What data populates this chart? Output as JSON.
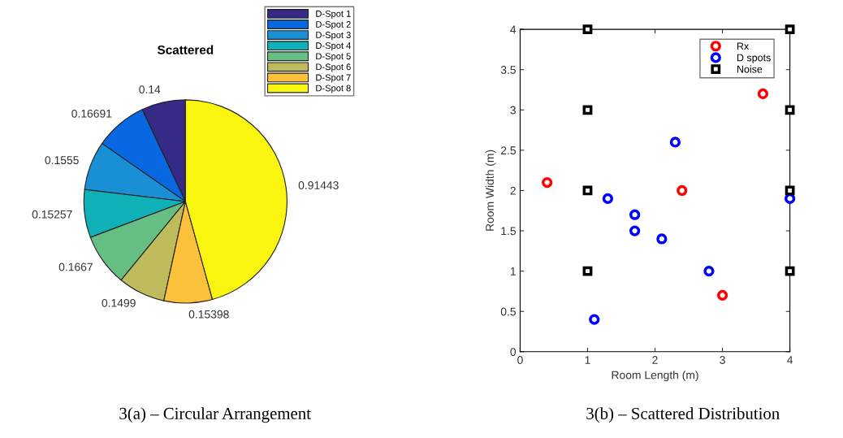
{
  "chart_data": [
    {
      "type": "pie",
      "title": "Scattered",
      "categories": [
        "D-Spot 1",
        "D-Spot 2",
        "D-Spot 3",
        "D-Spot 4",
        "D-Spot 5",
        "D-Spot 6",
        "D-Spot 7",
        "D-Spot 8"
      ],
      "values": [
        0.14,
        0.16691,
        0.1555,
        0.15257,
        0.1667,
        0.1499,
        0.15398,
        0.91443
      ],
      "colors": [
        "#352a87",
        "#0868e1",
        "#1a8fd6",
        "#0fb0b8",
        "#65bf83",
        "#bdbb5b",
        "#fcc13a",
        "#f9f50e"
      ],
      "data_labels": true,
      "legend": "top right",
      "annotations": [
        "3(a) – Circular Arrangement"
      ]
    },
    {
      "type": "scatter",
      "xlabel": "Room Length (m)",
      "ylabel": "Room Width (m)",
      "xlim": [
        0,
        4
      ],
      "ylim": [
        0,
        4
      ],
      "xticks": [
        0,
        1,
        2,
        3,
        4
      ],
      "yticks": [
        0,
        0.5,
        1,
        1.5,
        2,
        2.5,
        3,
        3.5,
        4
      ],
      "grid": false,
      "legend": "top right",
      "series": [
        {
          "name": "Rx",
          "color": "#ff0000",
          "marker": "circle",
          "x": [
            0.4,
            2.4,
            3.0,
            3.6
          ],
          "values": [
            2.1,
            2.0,
            0.7,
            3.2
          ]
        },
        {
          "name": "D spots",
          "color": "#0000ff",
          "marker": "circle",
          "x": [
            1.1,
            1.3,
            1.7,
            1.7,
            2.1,
            2.3,
            2.8,
            4.0
          ],
          "values": [
            0.4,
            1.9,
            1.7,
            1.5,
            1.4,
            2.6,
            1.0,
            1.9
          ]
        },
        {
          "name": "Noise",
          "color": "#000000",
          "marker": "square",
          "x": [
            1,
            1,
            1,
            1,
            4,
            4,
            4,
            4
          ],
          "values": [
            4,
            3,
            2,
            1,
            4,
            3,
            2,
            1
          ]
        }
      ],
      "annotations": [
        "3(b) – Scattered Distribution"
      ]
    }
  ]
}
